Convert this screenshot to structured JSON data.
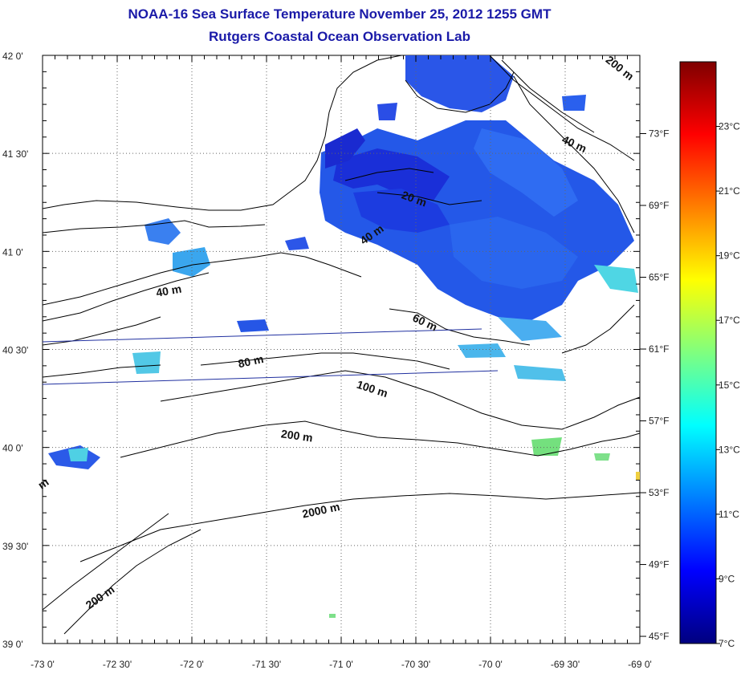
{
  "header": {
    "title": "NOAA-16 Sea Surface Temperature November 25, 2012 1255 GMT",
    "subtitle": "Rutgers Coastal Ocean Observation Lab"
  },
  "axes": {
    "lon_ticks": [
      "-73 0'",
      "-72 30'",
      "-72 0'",
      "-71 30'",
      "-71 0'",
      "-70 30'",
      "-70 0'",
      "-69 30'",
      "-69 0'"
    ],
    "lat_ticks": [
      "42 0'",
      "41 30'",
      "41 0'",
      "40 30'",
      "40 0'",
      "39 30'",
      "39 0'"
    ],
    "lon_range": [
      -73,
      -69
    ],
    "lat_range": [
      39,
      42
    ],
    "grid": "dotted"
  },
  "isobath_labels": [
    {
      "text": "200 m",
      "lon": -69.15,
      "lat": 41.92,
      "rot": 38
    },
    {
      "text": "40 m",
      "lon": -69.45,
      "lat": 41.53,
      "rot": 25
    },
    {
      "text": "20 m",
      "lon": -70.52,
      "lat": 41.25,
      "rot": 20
    },
    {
      "text": "40 m",
      "lon": -70.78,
      "lat": 41.07,
      "rot": -35
    },
    {
      "text": "40 m",
      "lon": -72.15,
      "lat": 40.78,
      "rot": -10
    },
    {
      "text": "60 m",
      "lon": -70.45,
      "lat": 40.62,
      "rot": 25
    },
    {
      "text": "80 m",
      "lon": -71.6,
      "lat": 40.42,
      "rot": -12
    },
    {
      "text": "100 m",
      "lon": -70.8,
      "lat": 40.28,
      "rot": 18
    },
    {
      "text": "200 m",
      "lon": -71.3,
      "lat": 40.04,
      "rot": 8
    },
    {
      "text": "2000 m",
      "lon": -71.13,
      "lat": 39.66,
      "rot": -12
    },
    {
      "text": "200 m",
      "lon": -72.6,
      "lat": 39.22,
      "rot": -35
    },
    {
      "text": "m",
      "lon": -72.98,
      "lat": 39.8,
      "rot": -35
    }
  ],
  "colorbar": {
    "min_c": 7,
    "max_c": 25,
    "celsius_labels": [
      "7°C",
      "9°C",
      "11°C",
      "13°C",
      "15°C",
      "17°C",
      "19°C",
      "21°C",
      "23°C"
    ],
    "fahrenheit_labels": [
      "45°F",
      "49°F",
      "53°F",
      "57°F",
      "61°F",
      "65°F",
      "69°F",
      "73°F"
    ],
    "stops": [
      "#00007f",
      "#0000ff",
      "#007fff",
      "#00ffff",
      "#7fff7f",
      "#ffff00",
      "#ff7f00",
      "#ff0000",
      "#7f0000"
    ]
  },
  "colors": {
    "water_cold": "#1a3fe0",
    "water_mid": "#2a6cf0",
    "water_cyan": "#3fd0e8",
    "water_green": "#6fe07a"
  }
}
